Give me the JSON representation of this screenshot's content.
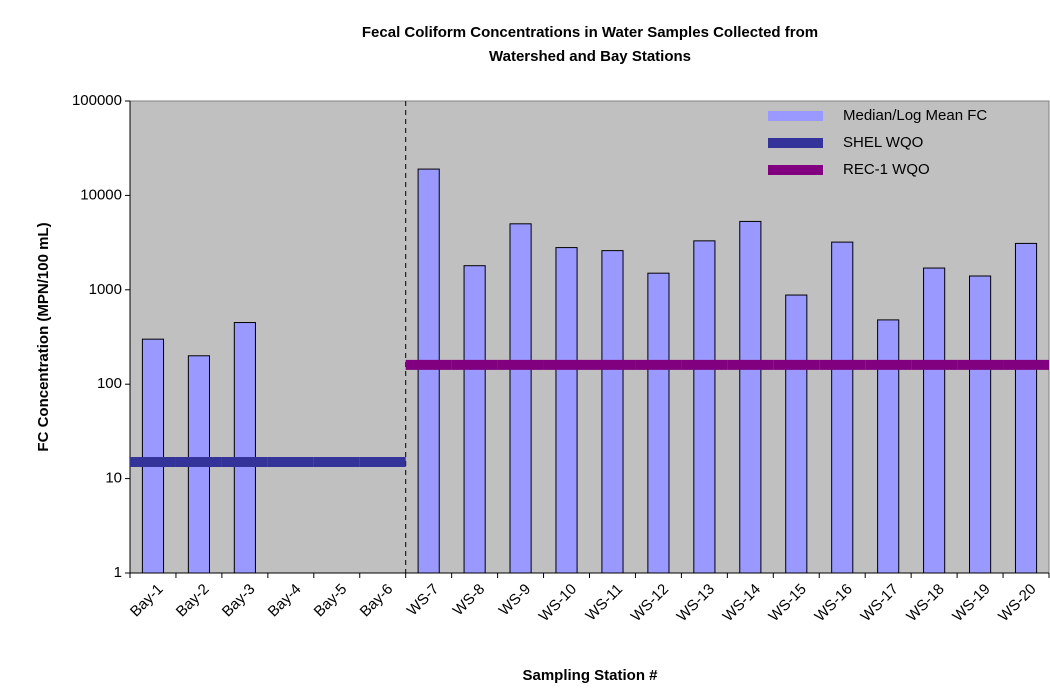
{
  "chart_data": {
    "type": "bar",
    "title": [
      "Fecal Coliform Concentrations in Water Samples Collected from",
      "Watershed and Bay Stations"
    ],
    "x_label": "Sampling Station #",
    "y_label": "FC Concentration (MPN/100 mL)",
    "categories": [
      "Bay-1",
      "Bay-2",
      "Bay-3",
      "Bay-4",
      "Bay-5",
      "Bay-6",
      "WS-7",
      "WS-8",
      "WS-9",
      "WS-10",
      "WS-11",
      "WS-12",
      "WS-13",
      "WS-14",
      "WS-15",
      "WS-16",
      "WS-17",
      "WS-18",
      "WS-19",
      "WS-20"
    ],
    "series": [
      {
        "name": "Median/Log Mean FC",
        "color": "#9999ff",
        "type": "bar",
        "values": [
          300,
          200,
          450,
          null,
          null,
          null,
          19000,
          1800,
          5000,
          2800,
          2600,
          1500,
          3300,
          5300,
          880,
          3200,
          480,
          1700,
          1400,
          3100
        ]
      },
      {
        "name": "SHEL WQO",
        "color": "#333399",
        "type": "line",
        "values": [
          15,
          15,
          15,
          15,
          15,
          15,
          null,
          null,
          null,
          null,
          null,
          null,
          null,
          null,
          null,
          null,
          null,
          null,
          null,
          null
        ]
      },
      {
        "name": "REC-1 WQO",
        "color": "#800080",
        "type": "line",
        "values": [
          null,
          null,
          null,
          null,
          null,
          null,
          160,
          160,
          160,
          160,
          160,
          160,
          160,
          160,
          160,
          160,
          160,
          160,
          160,
          160
        ]
      }
    ],
    "ylim": [
      1,
      100000
    ],
    "yticks": [
      1,
      10,
      100,
      1000,
      10000,
      100000
    ],
    "log_y": true,
    "legend": "top-right",
    "background": "#c0c0c0"
  }
}
